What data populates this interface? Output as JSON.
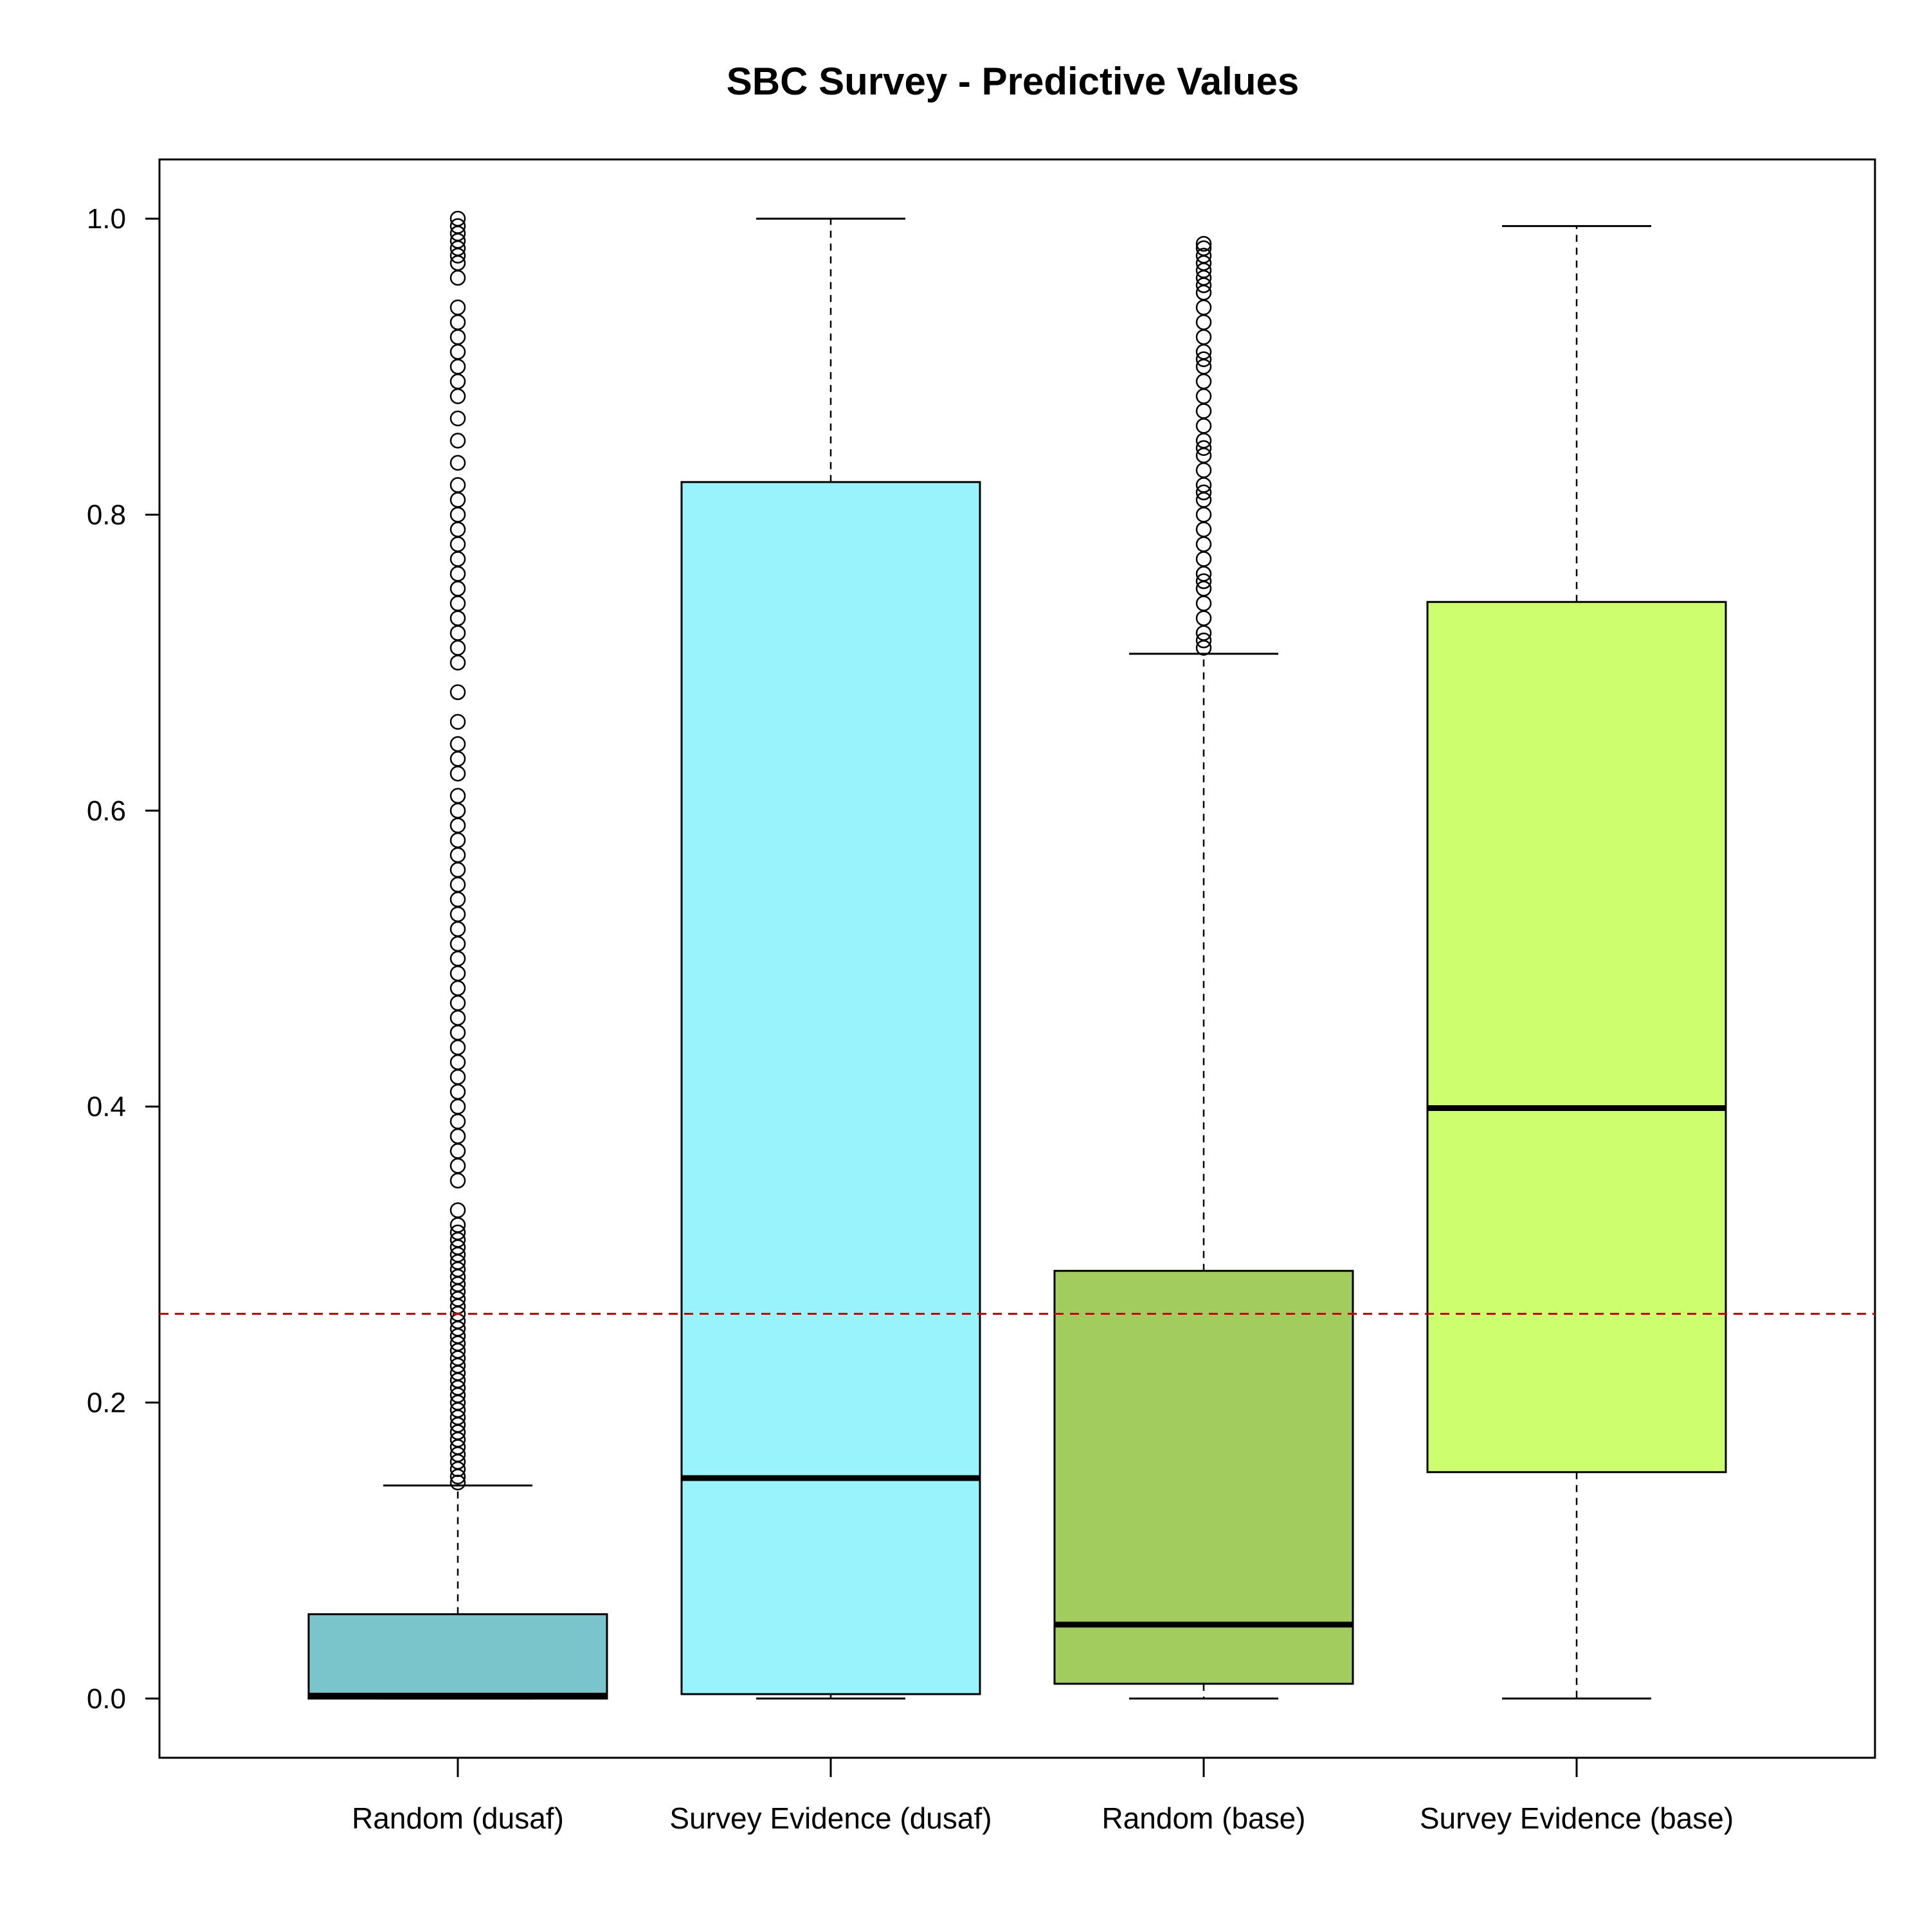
{
  "chart_data": {
    "type": "box",
    "title": "SBC Survey - Predictive Values",
    "xlabel": "",
    "ylabel": "",
    "ylim": [
      -0.04,
      1.04
    ],
    "yticks": [
      "0.0",
      "0.2",
      "0.4",
      "0.6",
      "0.8",
      "1.0"
    ],
    "ytick_values": [
      0.0,
      0.2,
      0.4,
      0.6,
      0.8,
      1.0
    ],
    "grid": false,
    "reference_line": {
      "y": 0.26,
      "color": "#cc0000",
      "style": "dashed"
    },
    "categories": [
      "Random (dusaf)",
      "Survey Evidence (dusaf)",
      "Random (base)",
      "Survey Evidence (base)"
    ],
    "boxes": [
      {
        "label": "Random (dusaf)",
        "color": "#7ac4cc",
        "whisker_low": 0.0,
        "q1": 0.0,
        "median": 0.002,
        "q3": 0.057,
        "whisker_high": 0.144,
        "outliers": [
          0.146,
          0.15,
          0.155,
          0.16,
          0.165,
          0.17,
          0.175,
          0.18,
          0.185,
          0.19,
          0.195,
          0.2,
          0.205,
          0.21,
          0.215,
          0.22,
          0.225,
          0.23,
          0.235,
          0.24,
          0.245,
          0.25,
          0.255,
          0.26,
          0.265,
          0.27,
          0.275,
          0.28,
          0.285,
          0.29,
          0.295,
          0.3,
          0.305,
          0.31,
          0.315,
          0.32,
          0.33,
          0.35,
          0.36,
          0.37,
          0.38,
          0.39,
          0.4,
          0.41,
          0.42,
          0.43,
          0.44,
          0.45,
          0.46,
          0.47,
          0.48,
          0.49,
          0.5,
          0.51,
          0.52,
          0.53,
          0.54,
          0.55,
          0.56,
          0.57,
          0.58,
          0.59,
          0.6,
          0.61,
          0.625,
          0.635,
          0.645,
          0.66,
          0.68,
          0.7,
          0.71,
          0.72,
          0.73,
          0.74,
          0.75,
          0.76,
          0.77,
          0.78,
          0.79,
          0.8,
          0.81,
          0.82,
          0.835,
          0.85,
          0.865,
          0.88,
          0.89,
          0.9,
          0.91,
          0.92,
          0.93,
          0.94,
          0.96,
          0.97,
          0.975,
          0.98,
          0.985,
          0.99,
          0.995,
          1.0
        ]
      },
      {
        "label": "Survey Evidence (dusaf)",
        "color": "#99f3fc",
        "whisker_low": 0.0,
        "q1": 0.003,
        "median": 0.149,
        "q3": 0.822,
        "whisker_high": 1.0,
        "outliers": []
      },
      {
        "label": "Random (base)",
        "color": "#a2cd5e",
        "whisker_low": 0.0,
        "q1": 0.01,
        "median": 0.05,
        "q3": 0.289,
        "whisker_high": 0.706,
        "outliers": [
          0.71,
          0.715,
          0.72,
          0.73,
          0.74,
          0.75,
          0.755,
          0.76,
          0.77,
          0.78,
          0.79,
          0.8,
          0.81,
          0.815,
          0.82,
          0.83,
          0.84,
          0.845,
          0.85,
          0.86,
          0.87,
          0.88,
          0.89,
          0.9,
          0.905,
          0.91,
          0.92,
          0.93,
          0.94,
          0.95,
          0.955,
          0.96,
          0.965,
          0.97,
          0.975,
          0.98,
          0.983
        ]
      },
      {
        "label": "Survey Evidence (base)",
        "color": "#ccfe6e",
        "whisker_low": 0.0,
        "q1": 0.153,
        "median": 0.399,
        "q3": 0.741,
        "whisker_high": 0.995,
        "outliers": []
      }
    ]
  }
}
